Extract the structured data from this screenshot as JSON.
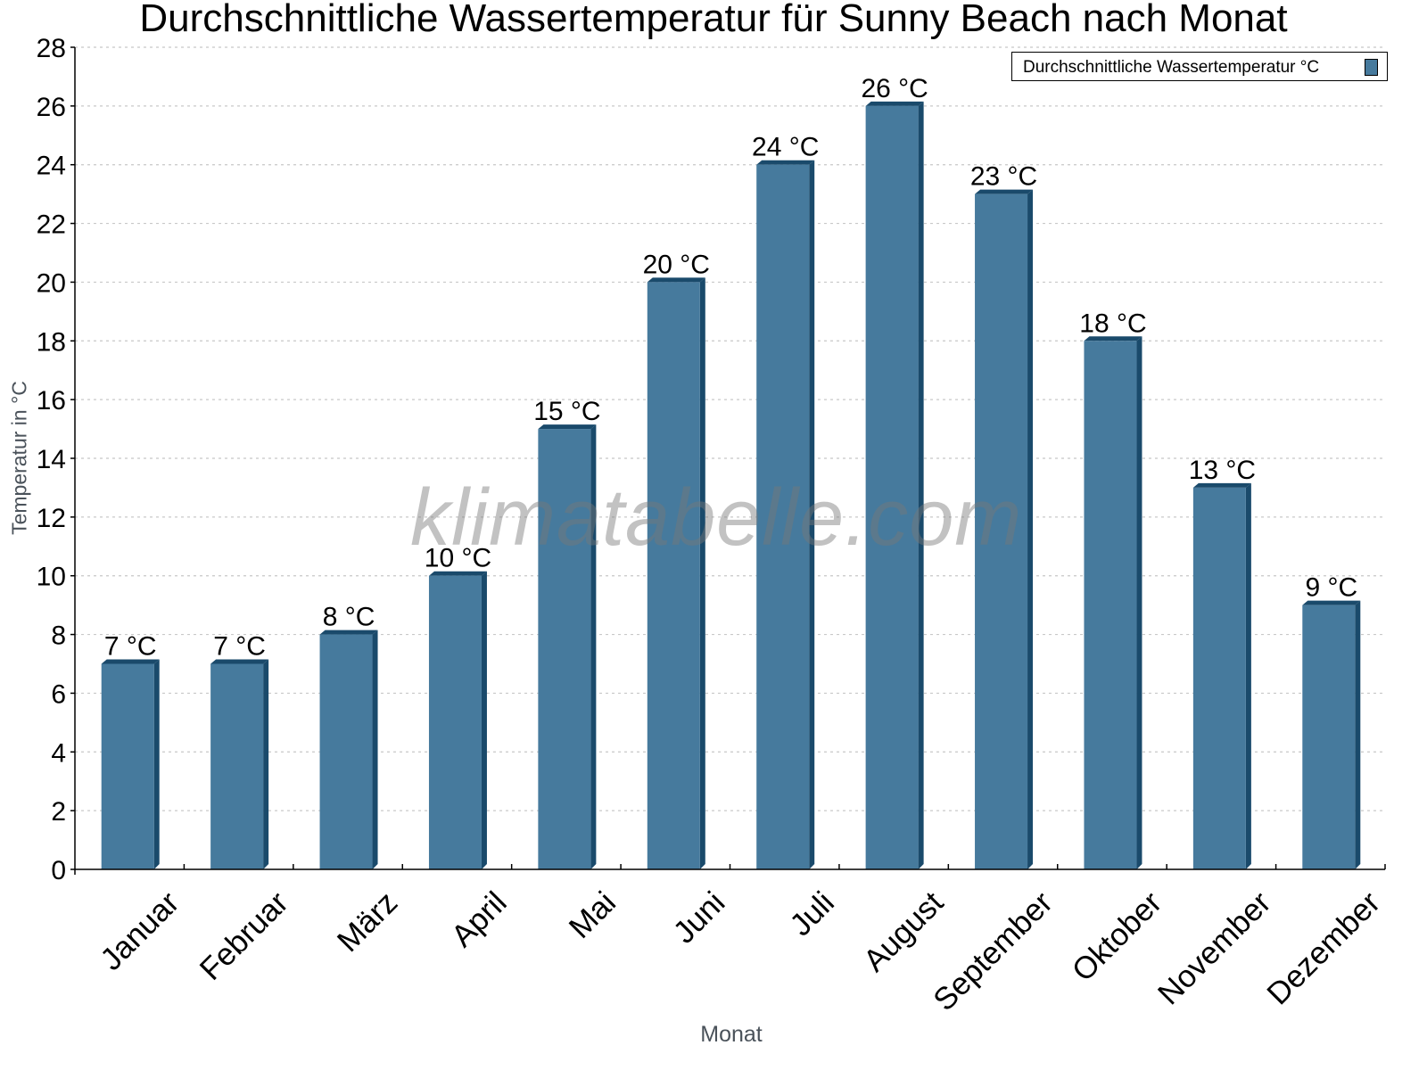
{
  "chart_data": {
    "type": "bar",
    "title": "Durchschnittliche Wassertemperatur für Sunny Beach nach Monat",
    "xlabel": "Monat",
    "ylabel": "Temperatur in °C",
    "categories": [
      "Januar",
      "Februar",
      "März",
      "April",
      "Mai",
      "Juni",
      "Juli",
      "August",
      "September",
      "Oktober",
      "November",
      "Dezember"
    ],
    "series": [
      {
        "name": "Durchschnittliche Wassertemperatur °C",
        "values": [
          7,
          7,
          8,
          10,
          15,
          20,
          24,
          26,
          23,
          18,
          13,
          9
        ],
        "color": "#467a9d"
      }
    ],
    "data_labels": [
      "7 °C",
      "7 °C",
      "8 °C",
      "10 °C",
      "15 °C",
      "20 °C",
      "24 °C",
      "26 °C",
      "23 °C",
      "18 °C",
      "13 °C",
      "9 °C"
    ],
    "ylim": [
      0,
      28
    ],
    "yticks": [
      0,
      2,
      4,
      6,
      8,
      10,
      12,
      14,
      16,
      18,
      20,
      22,
      24,
      26,
      28
    ],
    "grid": true,
    "legend_position": "top-right",
    "watermark": "klimatabelle.com"
  },
  "colors": {
    "bar_face": "#467a9d",
    "bar_side": "#1a4a6b",
    "grid": "#c8c8c8",
    "axis_label": "#4a525a"
  }
}
